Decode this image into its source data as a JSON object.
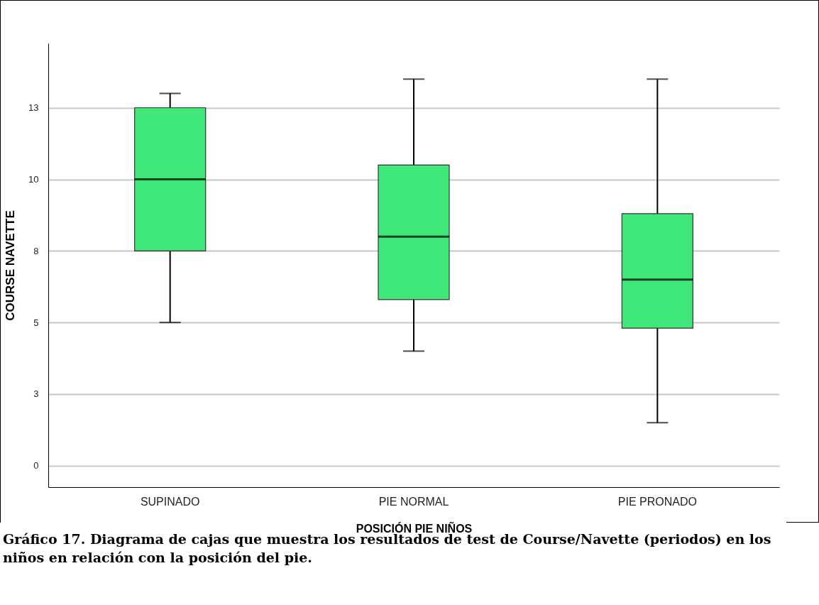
{
  "chart_data": {
    "type": "box",
    "xlabel": "POSICIÓN PIE NIÑOS",
    "ylabel": "COURSE NAVETTE",
    "categories": [
      "SUPINADO",
      "PIE NORMAL",
      "PIE PRONADO"
    ],
    "series": [
      {
        "color": "#40e87a",
        "boxes": [
          {
            "low": 5,
            "q1": 7.5,
            "median": 10,
            "q3": 12.5,
            "high": 13
          },
          {
            "low": 4,
            "q1": 5.8,
            "median": 8,
            "q3": 10.5,
            "high": 13.5
          },
          {
            "low": 1.5,
            "q1": 4.8,
            "median": 6.5,
            "q3": 8.8,
            "high": 13.5
          }
        ]
      }
    ],
    "ylim": [
      -0.75,
      14.75
    ],
    "yticks": [
      0,
      {
        "value": 2.5,
        "label": "3"
      },
      5,
      {
        "value": 7.5,
        "label": "8"
      },
      10,
      {
        "value": 12.5,
        "label": "13"
      }
    ],
    "grid": "y",
    "annotations": [
      "Gráfico 17. Diagrama de cajas que muestra los resultados de test de Course/Navette (periodos) en los niños en relación con la posición del pie."
    ]
  }
}
